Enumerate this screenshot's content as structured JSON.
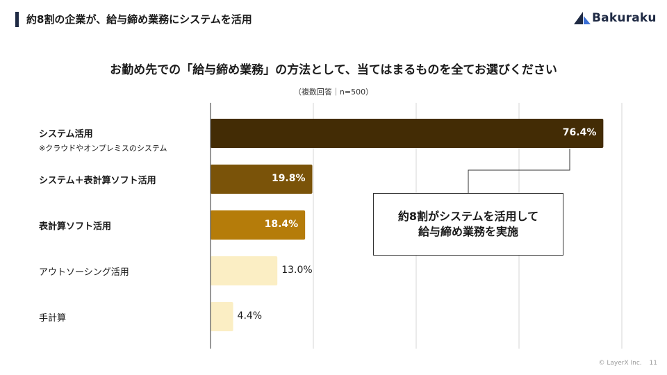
{
  "header": {
    "title": "約8割の企業が、給与締め業務にシステムを活用",
    "logo_text": "Bakuraku"
  },
  "chart_data": {
    "type": "bar",
    "orientation": "horizontal",
    "title": "お勤め先での「給与締め業務」の方法として、当てはまるものを全てお選びください",
    "note": "（複数回答｜n=500）",
    "categories": [
      "システム活用",
      "システム＋表計算ソフト活用",
      "表計算ソフト活用",
      "アウトソーシング活用",
      "手計算"
    ],
    "category_notes": [
      "※クラウドやオンプレミスのシステム",
      "",
      "",
      "",
      ""
    ],
    "values": [
      76.4,
      19.8,
      18.4,
      13.0,
      4.4
    ],
    "value_labels": [
      "76.4%",
      "19.8%",
      "18.4%",
      "13.0%",
      "4.4%"
    ],
    "bar_colors": [
      "#432c05",
      "#7a5309",
      "#b57c0a",
      "#fbeec4",
      "#fbeec4"
    ],
    "label_inside": [
      true,
      true,
      true,
      false,
      false
    ],
    "bold_categories": [
      true,
      true,
      true,
      false,
      false
    ],
    "xlim": [
      0,
      100
    ],
    "gridlines": [
      0,
      20,
      40,
      60,
      80
    ],
    "grid": true
  },
  "callout": {
    "line1": "約8割がシステムを活用して",
    "line2": "給与締め業務を実施"
  },
  "footer": {
    "copyright": "© LayerX Inc.",
    "page": "11"
  }
}
